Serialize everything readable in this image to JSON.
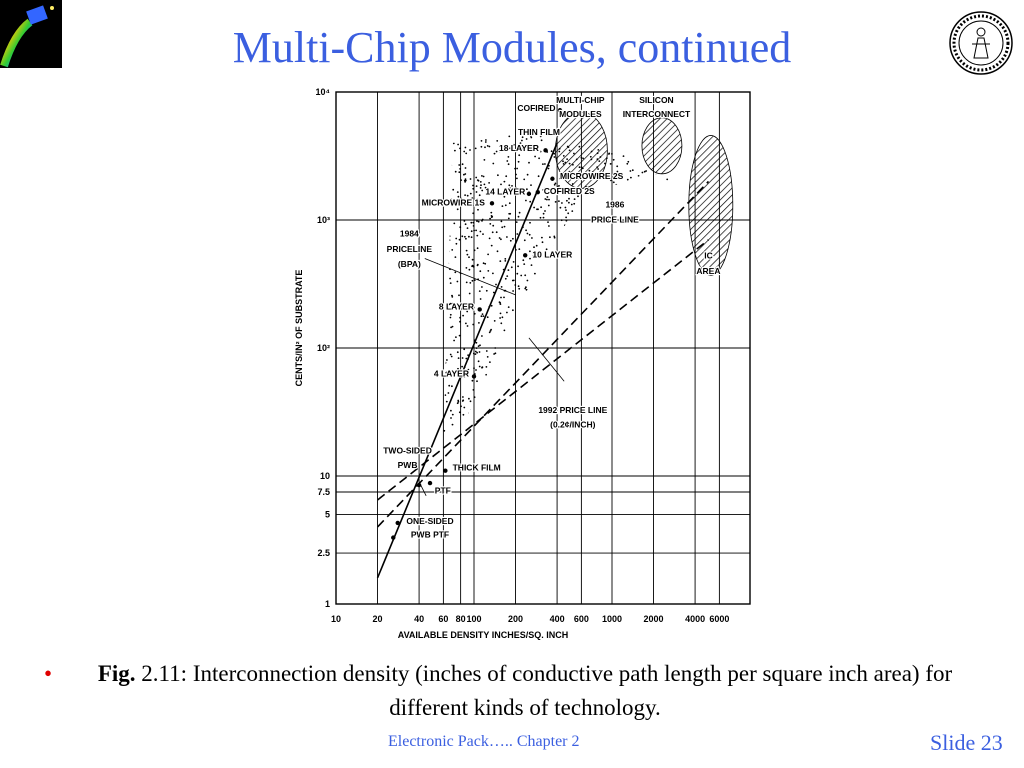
{
  "slide": {
    "title": "Multi-Chip Modules, continued",
    "footer_center": "Electronic Pack…..   Chapter 2",
    "footer_right": "Slide 23"
  },
  "caption": {
    "bullet": "•",
    "fig_label": "Fig.",
    "text": " 2.11: Interconnection density (inches of conductive path length per square inch area) for different kinds of technology."
  },
  "colors": {
    "title": "#3b5fe0",
    "bullet": "#e00000",
    "chart_ink": "#000000"
  },
  "chart_data": {
    "type": "line",
    "xlabel": "AVAILABLE DENSITY INCHES/SQ. INCH",
    "ylabel": "CENTS/IN² OF SUBSTRATE",
    "x_scale": "log",
    "y_scale": "log",
    "xlim": [
      10,
      10000
    ],
    "ylim": [
      1,
      10000
    ],
    "x_ticks": [
      10,
      20,
      40,
      60,
      80,
      100,
      200,
      400,
      600,
      1000,
      2000,
      4000,
      6000
    ],
    "x_tick_labels": [
      "10",
      "20",
      "40",
      "60",
      "80",
      "100",
      "200",
      "400",
      "600",
      "1000",
      "2000",
      "4000",
      "6000"
    ],
    "y_ticks": [
      1,
      2.5,
      5,
      7.5,
      10,
      100,
      1000,
      10000
    ],
    "y_tick_labels": [
      "1",
      "2.5",
      "5",
      "7.5",
      "10",
      "10²",
      "10³",
      "10⁴"
    ],
    "grid": true,
    "series": [
      {
        "name": "1984 PRICELINE (BPA)",
        "style": "solid",
        "x": [
          20,
          400
        ],
        "y": [
          1.6,
          4000
        ]
      },
      {
        "name": "1986 PRICE LINE",
        "style": "dashed",
        "x": [
          20,
          5000
        ],
        "y": [
          4,
          2000
        ]
      },
      {
        "name": "1992 PRICE LINE (0.2¢/INCH)",
        "style": "dashed",
        "x": [
          20,
          5000
        ],
        "y": [
          6.5,
          700
        ]
      }
    ],
    "points": [
      {
        "label": "COFIRED",
        "x": 420,
        "y": 7200
      },
      {
        "label": "THIN FILM",
        "x": 400,
        "y": 4800
      },
      {
        "label": "18 LAYER",
        "x": 330,
        "y": 3500
      },
      {
        "label": "MICROWIRE 2S",
        "x": 370,
        "y": 2100
      },
      {
        "label": "COFIRED 2S",
        "x": 290,
        "y": 1650
      },
      {
        "label": "14 LAYER",
        "x": 250,
        "y": 1600
      },
      {
        "label": "MICROWIRE 1S",
        "x": 135,
        "y": 1350
      },
      {
        "label": "10 LAYER",
        "x": 235,
        "y": 530
      },
      {
        "label": "8 LAYER",
        "x": 110,
        "y": 200
      },
      {
        "label": "4 LAYER",
        "x": 100,
        "y": 60
      },
      {
        "label": "TWO-SIDED PWB",
        "x": 40,
        "y": 8.5
      },
      {
        "label": "THICK FILM",
        "x": 62,
        "y": 11
      },
      {
        "label": "PTF",
        "x": 48,
        "y": 8.8
      },
      {
        "label": "ONE-SIDED PWB",
        "x": 26,
        "y": 3.3
      },
      {
        "label": "PTF",
        "x": 28,
        "y": 4.3
      }
    ],
    "regions": [
      {
        "label": "MULTI-CHIP MODULES",
        "pattern": "hatched"
      },
      {
        "label": "SILICON INTERCONNECT",
        "pattern": "hatched"
      },
      {
        "label": "IC AREA",
        "pattern": "hatched"
      }
    ],
    "annotations": [
      "1984 PRICELINE (BPA)",
      "1986 PRICE LINE",
      "1992 PRICE LINE (0.2¢/INCH)"
    ]
  }
}
